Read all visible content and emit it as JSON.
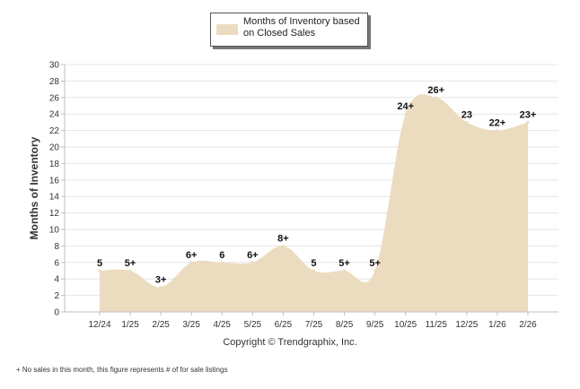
{
  "chart_data": {
    "type": "area",
    "title": "",
    "ylabel": "Months of Inventory",
    "xlabel": "",
    "ylim": [
      0,
      30
    ],
    "y_ticks": [
      "0",
      "2",
      "4",
      "6",
      "8",
      "10",
      "12",
      "14",
      "16",
      "18",
      "20",
      "22",
      "24",
      "26",
      "28",
      "30"
    ],
    "categories": [
      "12/24",
      "1/25",
      "2/25",
      "3/25",
      "4/25",
      "5/25",
      "6/25",
      "7/25",
      "8/25",
      "9/25",
      "10/25",
      "11/25",
      "12/25",
      "1/26",
      "2/26"
    ],
    "series": [
      {
        "name": "Months of Inventory based on Closed Sales",
        "values": [
          5,
          5,
          3,
          6,
          6,
          6,
          8,
          5,
          5,
          5,
          24,
          26,
          23,
          22,
          23
        ],
        "labels": [
          "5",
          "5+",
          "3+",
          "6+",
          "6",
          "6+",
          "8+",
          "5",
          "5+",
          "5+",
          "24+",
          "26+",
          "23",
          "22+",
          "23+"
        ]
      }
    ],
    "grid": true,
    "legend": "top-center"
  },
  "legend": {
    "label": "Months of Inventory based on Closed Sales"
  },
  "copyright": "Copyright © Trendgraphix, Inc.",
  "footnote": "+  No sales in this month, this figure represents # of for sale listings",
  "colors": {
    "area_fill": "#ecdcbf",
    "grid": "#e6e6e6",
    "axis": "#bfbfbf",
    "text": "#333333"
  }
}
